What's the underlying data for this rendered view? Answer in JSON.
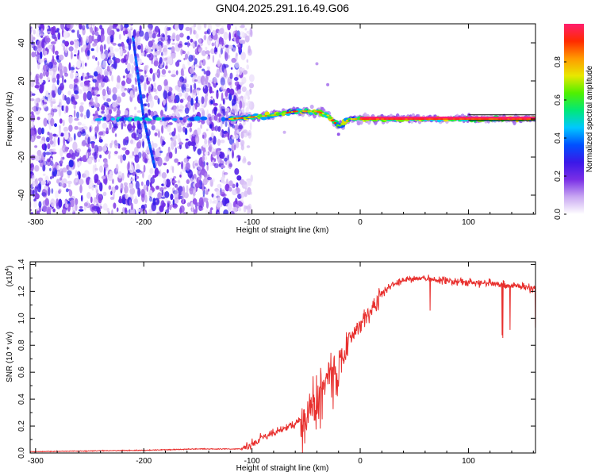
{
  "title": "GN04.2025.291.16.49.G06",
  "chart_data": [
    {
      "type": "heatmap",
      "title": "GN04.2025.291.16.49.G06",
      "xlabel": "Height of straight line (km)",
      "ylabel": "Frequency (Hz)",
      "xlim": [
        -305,
        162
      ],
      "ylim": [
        -50,
        50
      ],
      "xticks": [
        -300,
        -200,
        -100,
        0,
        100
      ],
      "xtick_labels": [
        "-300",
        "-200",
        "-100",
        "0",
        "100"
      ],
      "yticks": [
        -40,
        -20,
        0,
        20,
        40
      ],
      "ytick_labels": [
        "-40",
        "-20",
        "0",
        "20",
        "40"
      ],
      "colorbar": {
        "label": "Normalized spectral amplitude",
        "range": [
          0,
          1
        ],
        "ticks": [
          0.0,
          0.2,
          0.4,
          0.6,
          0.8
        ],
        "tick_labels": [
          "0.0",
          "0.2",
          "0.4",
          "0.6",
          "0.8"
        ],
        "colors": [
          "#ffffff",
          "#c9a8f2",
          "#7a2fe6",
          "#3a18e8",
          "#0050ff",
          "#00c8ff",
          "#00e878",
          "#50f000",
          "#e8e800",
          "#ff9a00",
          "#ff2a00",
          "#ff1e6e"
        ]
      },
      "features": [
        {
          "name": "noise region",
          "x_range": [
            -305,
            -110
          ],
          "freq_range": [
            -50,
            50
          ]
        },
        {
          "name": "drifting line",
          "points": [
            {
              "x": -210,
              "f": 43
            },
            {
              "x": -200,
              "f": 0
            },
            {
              "x": -190,
              "f": -25
            }
          ]
        },
        {
          "name": "carrier band",
          "points": [
            {
              "x": -120,
              "f": 0
            },
            {
              "x": -80,
              "f": 2
            },
            {
              "x": -60,
              "f": 4
            },
            {
              "x": -40,
              "f": 4
            },
            {
              "x": -30,
              "f": 2
            },
            {
              "x": -20,
              "f": -4
            },
            {
              "x": -10,
              "f": 0
            },
            {
              "x": 0,
              "f": 0
            },
            {
              "x": 162,
              "f": 0
            }
          ]
        }
      ]
    },
    {
      "type": "line",
      "xlabel": "Height of straight line (km)",
      "ylabel": "SNR (10 * v/v)",
      "yscale_label": "(x10",
      "yscale_exponent": "4",
      "yscale_suffix": ")",
      "xlim": [
        -305,
        162
      ],
      "ylim": [
        0,
        1.42
      ],
      "xticks": [
        -300,
        -200,
        -100,
        0,
        100
      ],
      "xtick_labels": [
        "-300",
        "-200",
        "-100",
        "0",
        "100"
      ],
      "yticks": [
        0.0,
        0.2,
        0.4,
        0.6,
        0.8,
        1.0,
        1.2,
        1.4
      ],
      "ytick_labels": [
        "0.0",
        "0.2",
        "0.4",
        "0.6",
        "0.8",
        "1.0",
        "1.2",
        "1.4"
      ],
      "line_color": "#e8302e",
      "series": [
        {
          "name": "SNR",
          "x": [
            -305,
            -250,
            -200,
            -150,
            -110,
            -100,
            -90,
            -80,
            -70,
            -60,
            -50,
            -40,
            -35,
            -30,
            -25,
            -20,
            -15,
            -10,
            -5,
            0,
            5,
            10,
            15,
            20,
            25,
            30,
            40,
            50,
            60,
            70,
            80,
            90,
            100,
            110,
            120,
            130,
            140,
            150,
            162
          ],
          "y": [
            0.01,
            0.015,
            0.02,
            0.03,
            0.03,
            0.06,
            0.12,
            0.15,
            0.18,
            0.22,
            0.3,
            0.45,
            0.55,
            0.6,
            0.65,
            0.7,
            0.78,
            0.85,
            0.9,
            0.95,
            1.0,
            1.05,
            1.12,
            1.18,
            1.22,
            1.25,
            1.28,
            1.3,
            1.3,
            1.28,
            1.28,
            1.27,
            1.27,
            1.26,
            1.26,
            1.25,
            1.24,
            1.23,
            1.22
          ]
        }
      ]
    }
  ]
}
